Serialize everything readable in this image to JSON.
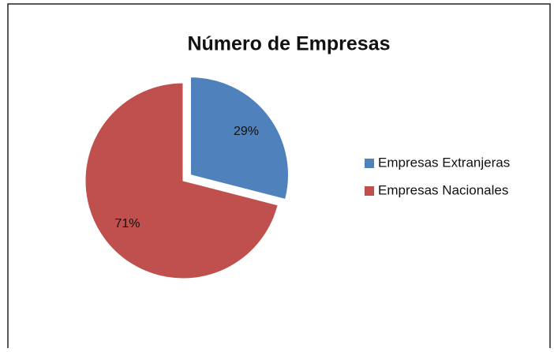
{
  "chart_data": {
    "type": "pie",
    "title": "Número de Empresas",
    "categories": [
      "Empresas Extranjeras",
      "Empresas Nacionales"
    ],
    "values": [
      29,
      71
    ],
    "value_labels": [
      "29%",
      "71%"
    ],
    "colors": [
      "#4f81bd",
      "#c0504d"
    ],
    "legend": "right"
  }
}
